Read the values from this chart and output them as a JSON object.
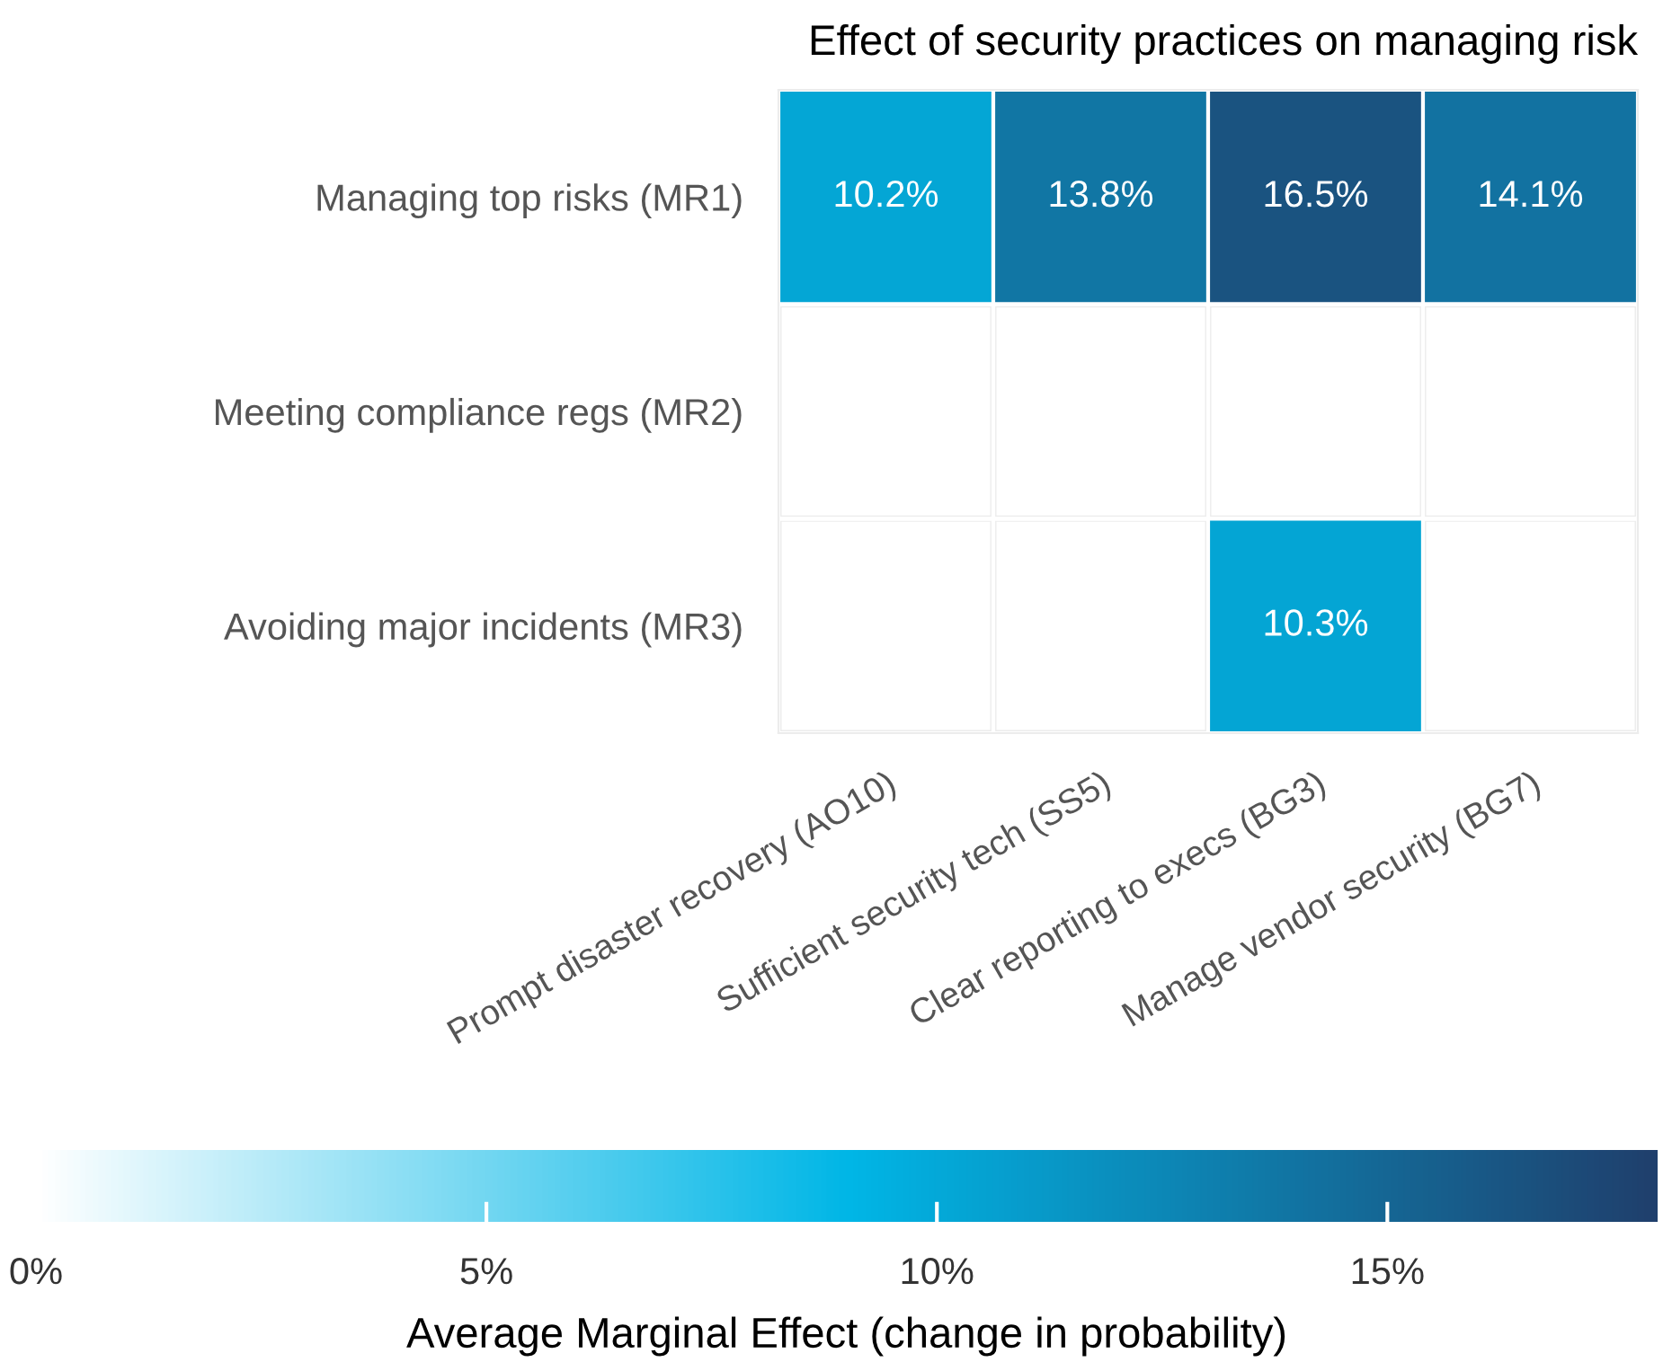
{
  "chart_data": {
    "type": "heatmap",
    "title": "Effect of security practices on managing risk",
    "categories": [
      "Prompt disaster recovery (AO10)",
      "Sufficient security tech (SS5)",
      "Clear reporting to execs (BG3)",
      "Manage vendor security (BG7)"
    ],
    "y_categories": [
      "Managing top risks (MR1)",
      "Meeting compliance regs (MR2)",
      "Avoiding major incidents (MR3)"
    ],
    "cells": [
      [
        10.2,
        13.8,
        16.5,
        14.1
      ],
      [
        null,
        null,
        null,
        null
      ],
      [
        null,
        null,
        10.3,
        null
      ]
    ],
    "cell_labels": [
      [
        "10.2%",
        "13.8%",
        "16.5%",
        "14.1%"
      ],
      [
        null,
        null,
        null,
        null
      ],
      [
        null,
        null,
        "10.3%",
        null
      ]
    ],
    "clim": [
      0,
      18
    ],
    "cticks": [
      {
        "value": 0,
        "label": "0%"
      },
      {
        "value": 5,
        "label": "5%"
      },
      {
        "value": 10,
        "label": "10%"
      },
      {
        "value": 15,
        "label": "15%"
      }
    ],
    "clabel": "Average Marginal Effect (change in probability)"
  }
}
